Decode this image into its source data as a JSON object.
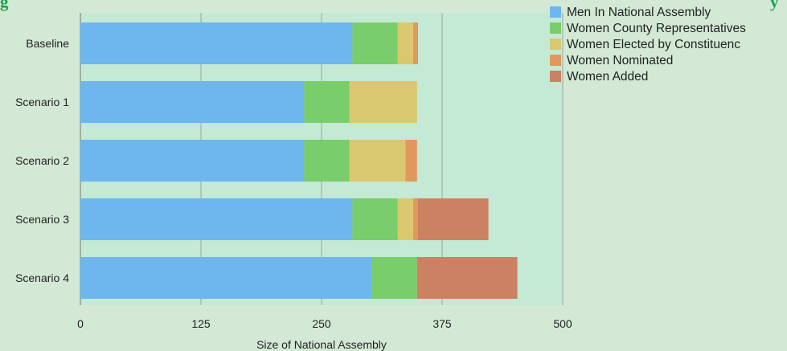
{
  "colors": {
    "background": "#d3e9d6",
    "plot_area": "#c4e9d5",
    "gridline": "#9aa8a0",
    "title": "#17a34a",
    "men": "#6db6ee",
    "women_county": "#79cd6a",
    "women_constituency": "#d9c870",
    "women_nominated": "#e0985c",
    "women_added": "#cc8163"
  },
  "title_text": "g",
  "title_tail": "y",
  "chart_data": {
    "type": "bar",
    "orientation": "horizontal",
    "stacked": true,
    "title": "",
    "xlabel": "Size of National Assembly",
    "ylabel": "",
    "xlim": [
      0,
      500
    ],
    "xticks": [
      "0",
      "125",
      "250",
      "375",
      "500"
    ],
    "grid": true,
    "legend_position": "top-right",
    "categories": [
      "Baseline",
      "Scenario 1",
      "Scenario 2",
      "Scenario 3",
      "Scenario 4"
    ],
    "series": [
      {
        "name": "Men In National Assembly",
        "color_key": "men",
        "values": [
          282,
          232,
          232,
          282,
          302
        ]
      },
      {
        "name": "Women County Representatives",
        "color_key": "women_county",
        "values": [
          47,
          47,
          47,
          47,
          47
        ]
      },
      {
        "name": "Women Elected by Constituenc",
        "color_key": "women_constituency",
        "values": [
          16,
          70,
          58,
          16,
          0
        ]
      },
      {
        "name": "Women Nominated",
        "color_key": "women_nominated",
        "values": [
          5,
          0,
          12,
          5,
          0
        ]
      },
      {
        "name": "Women Added",
        "color_key": "women_added",
        "values": [
          0,
          0,
          0,
          73,
          104
        ]
      }
    ]
  }
}
